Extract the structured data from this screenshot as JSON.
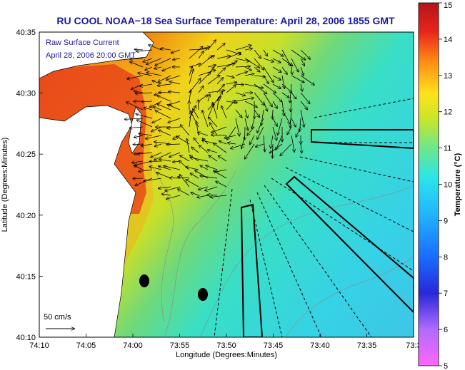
{
  "title": "RU COOL  NOAA−18  Sea Surface Temperature:  April 28, 2006 1855 GMT",
  "inset": {
    "line1": "Raw Surface Current",
    "line2": "April 28, 2006 20:00 GMT"
  },
  "scale_label": "50 cm/s",
  "xlabel": "Longitude (Degrees:Minutes)",
  "ylabel": "Latitude (Degrees:Minutes)",
  "xticks": [
    "74:10",
    "74:05",
    "74:00",
    "73:55",
    "73:50",
    "73:45",
    "73:40",
    "73:35",
    "73:3"
  ],
  "yticks": [
    "40:35",
    "40:30",
    "40:25",
    "40:20",
    "40:15",
    "40:10"
  ],
  "colorbar": {
    "label": "Temperature (°C)",
    "ticks": [
      "15",
      "14",
      "13",
      "12",
      "11",
      "10",
      "9",
      "8",
      "7",
      "6",
      "5"
    ],
    "range": [
      5,
      15
    ]
  },
  "colors": {
    "title": "#1a1aa0",
    "land": "#ffffff",
    "cold": "#39e5e5",
    "warm": "#e8251b"
  }
}
